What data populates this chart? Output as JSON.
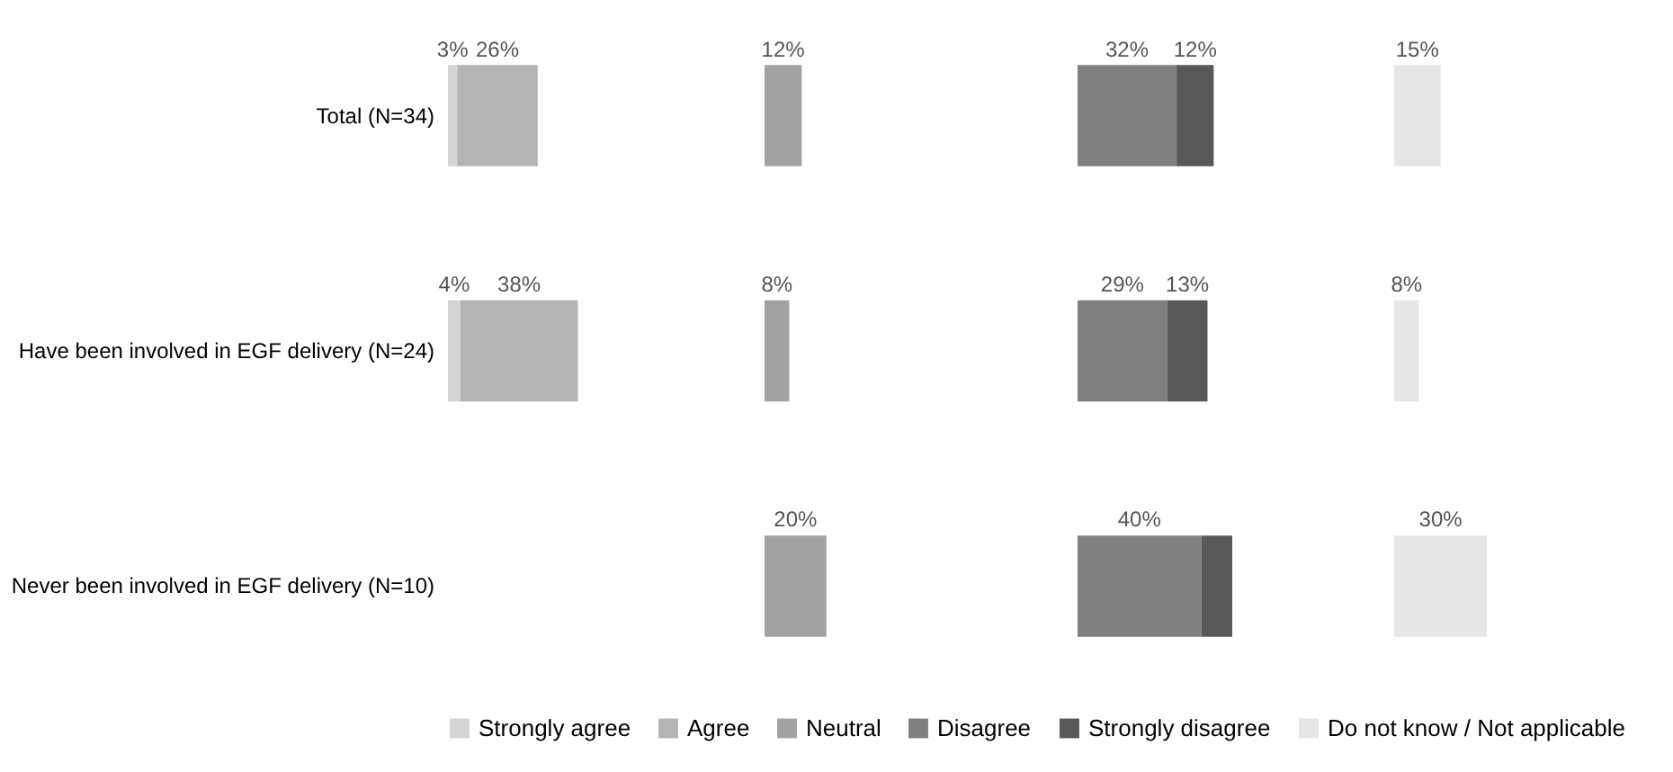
{
  "chart_data": [
    {
      "type": "bar",
      "orientation": "horizontal",
      "stacked": true,
      "categories": [
        "Total (N=34)",
        "Have been involved in EGF delivery (N=24)",
        "Never been involved in EGF delivery (N=10)"
      ],
      "series": [
        {
          "name": "Strongly agree",
          "color": "#d4d4d4",
          "values": [
            3,
            4,
            null
          ],
          "value_labels": [
            "3%",
            "4%",
            null
          ]
        },
        {
          "name": "Agree",
          "color": "#b4b4b4",
          "values": [
            26,
            38,
            null
          ],
          "value_labels": [
            "26%",
            "38%",
            null
          ]
        }
      ],
      "tick_labels": "y",
      "legend": "bottom"
    },
    {
      "type": "bar",
      "orientation": "horizontal",
      "categories": [
        "Total (N=34)",
        "Have been involved in EGF delivery (N=24)",
        "Never been involved in EGF delivery (N=10)"
      ],
      "series": [
        {
          "name": "Neutral",
          "color": "#a2a2a2",
          "values": [
            12,
            8,
            20
          ],
          "value_labels": [
            "12%",
            "8%",
            "20%"
          ]
        }
      ],
      "tick_labels": false,
      "legend": "bottom"
    },
    {
      "type": "bar",
      "orientation": "horizontal",
      "stacked": true,
      "categories": [
        "Total (N=34)",
        "Have been involved in EGF delivery (N=24)",
        "Never been involved in EGF delivery (N=10)"
      ],
      "series": [
        {
          "name": "Disagree",
          "color": "#808080",
          "values": [
            32,
            29,
            40
          ],
          "value_labels": [
            "32%",
            "29%",
            "40%"
          ]
        },
        {
          "name": "Strongly disagree",
          "color": "#585858",
          "values": [
            12,
            13,
            10
          ],
          "value_labels": [
            "12%",
            "13%",
            null
          ]
        }
      ],
      "tick_labels": false,
      "legend": "bottom"
    },
    {
      "type": "bar",
      "orientation": "horizontal",
      "categories": [
        "Total (N=34)",
        "Have been involved in EGF delivery (N=24)",
        "Never been involved in EGF delivery (N=10)"
      ],
      "series": [
        {
          "name": "Do not know / Not applicable",
          "color": "#e6e6e6",
          "values": [
            15,
            8,
            30
          ],
          "value_labels": [
            "15%",
            "8%",
            "30%"
          ]
        }
      ],
      "tick_labels": false,
      "legend": "bottom"
    }
  ]
}
